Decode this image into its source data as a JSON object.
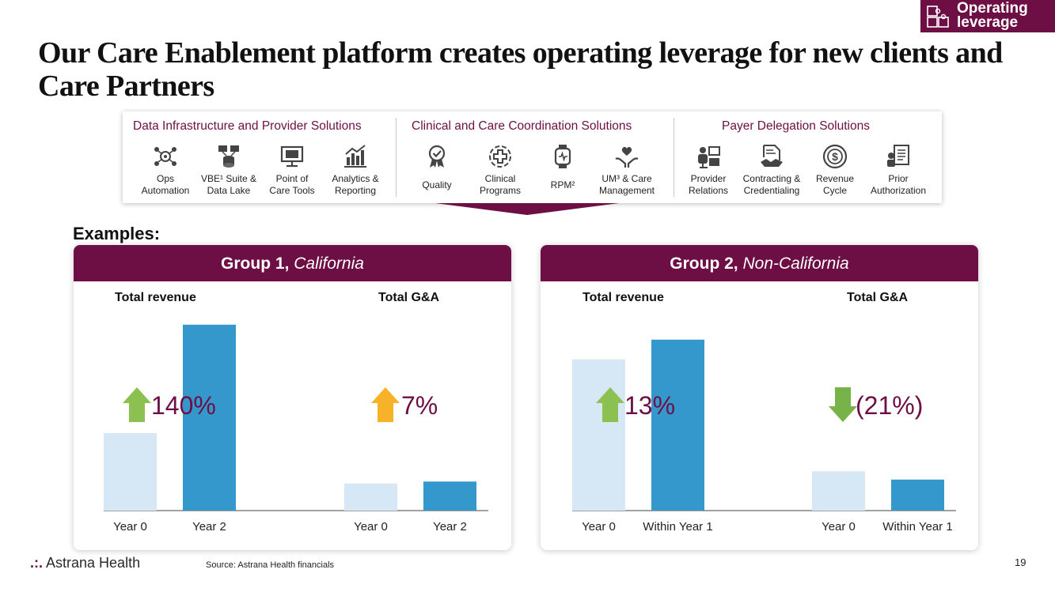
{
  "badge": {
    "label": "Operating leverage",
    "icon": "puzzle-icon"
  },
  "title": "Our Care Enablement platform creates operating leverage for new clients and Care Partners",
  "platform": {
    "sections": [
      {
        "heading": "Data Infrastructure and Provider Solutions",
        "items": [
          {
            "label": "Ops\nAutomation",
            "icon": "gears-network-icon"
          },
          {
            "label": "VBE¹ Suite &\nData Lake",
            "icon": "data-lake-icon"
          },
          {
            "label": "Point of\nCare Tools",
            "icon": "monitor-icon"
          },
          {
            "label": "Analytics &\nReporting",
            "icon": "analytics-icon"
          }
        ]
      },
      {
        "heading": "Clinical and Care Coordination Solutions",
        "items": [
          {
            "label": "Quality",
            "icon": "quality-badge-icon"
          },
          {
            "label": "Clinical\nPrograms",
            "icon": "medical-cross-icon"
          },
          {
            "label": "RPM²",
            "icon": "smartwatch-icon"
          },
          {
            "label": "UM³ & Care\nManagement",
            "icon": "care-hands-icon"
          }
        ]
      },
      {
        "heading": "Payer Delegation Solutions",
        "items": [
          {
            "label": "Provider\nRelations",
            "icon": "provider-relations-icon"
          },
          {
            "label": "Contracting &\nCredentialing",
            "icon": "handshake-document-icon"
          },
          {
            "label": "Revenue\nCycle",
            "icon": "dollar-cycle-icon"
          },
          {
            "label": "Prior\nAuthorization",
            "icon": "authorization-icon"
          }
        ]
      }
    ]
  },
  "examples_label": "Examples:",
  "groups": [
    {
      "title_bold": "Group 1,",
      "title_italic": "California"
    },
    {
      "title_bold": "Group 2,",
      "title_italic": "Non-California"
    }
  ],
  "colors": {
    "brand": "#6d0f45",
    "light_bar": "#d6e8f5",
    "dark_bar": "#3498cd",
    "up_green": "#8cc152",
    "up_orange": "#f7b22a",
    "down_green": "#77b348"
  },
  "chart_data": [
    {
      "type": "bar",
      "group": "Group 1, California",
      "title": "Total revenue",
      "categories": [
        "Year 0",
        "Year 2"
      ],
      "values": [
        1.0,
        2.4
      ],
      "ylim": [
        0,
        2.5
      ],
      "change_label": "140%",
      "direction": "up",
      "unit": "relative"
    },
    {
      "type": "bar",
      "group": "Group 1, California",
      "title": "Total G&A",
      "categories": [
        "Year 0",
        "Year 2"
      ],
      "values": [
        0.35,
        0.375
      ],
      "ylim": [
        0,
        2.5
      ],
      "change_label": "7%",
      "direction": "up",
      "unit": "relative"
    },
    {
      "type": "bar",
      "group": "Group 2, Non-California",
      "title": "Total revenue",
      "categories": [
        "Year 0",
        "Within Year 1"
      ],
      "values": [
        1.0,
        1.13
      ],
      "ylim": [
        0,
        1.28
      ],
      "change_label": "13%",
      "direction": "up",
      "unit": "relative"
    },
    {
      "type": "bar",
      "group": "Group 2, Non-California",
      "title": "Total G&A",
      "categories": [
        "Year 0",
        "Within Year 1"
      ],
      "values": [
        0.26,
        0.205
      ],
      "ylim": [
        0,
        1.28
      ],
      "change_label": "(21%)",
      "direction": "down",
      "unit": "relative"
    }
  ],
  "footer": {
    "logo": "Astrana Health",
    "source": "Source: Astrana Health financials",
    "page_number": "19"
  }
}
